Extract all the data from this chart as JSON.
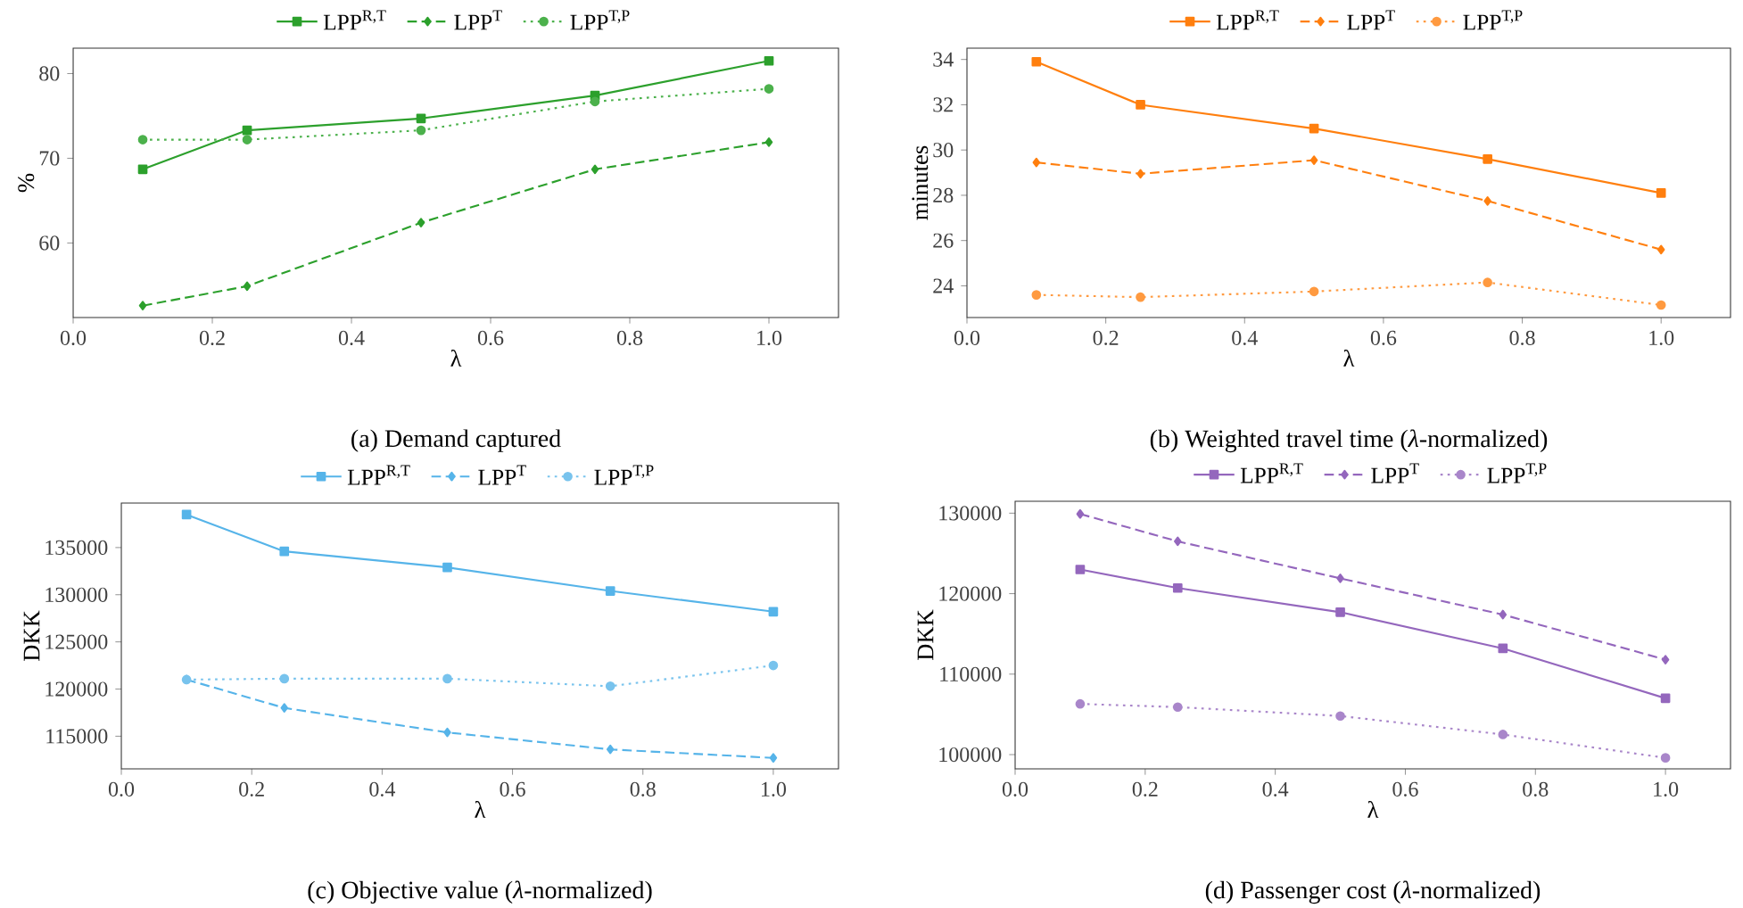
{
  "chart_data": [
    {
      "type": "line",
      "title": "(a) Demand captured",
      "xlabel": "λ",
      "ylabel": "%",
      "x": [
        0.1,
        0.25,
        0.5,
        0.75,
        1.0
      ],
      "xlim": [
        0,
        1.1
      ],
      "ylim": [
        51.2,
        83
      ],
      "xticks": [
        {
          "value": 0,
          "label": "0.0"
        },
        {
          "value": 0.2,
          "label": "0.2"
        },
        {
          "value": 0.4,
          "label": "0.4"
        },
        {
          "value": 0.6,
          "label": "0.6"
        },
        {
          "value": 0.8,
          "label": "0.8"
        },
        {
          "value": 1.0,
          "label": "1.0"
        }
      ],
      "yticks": [
        60,
        70,
        80
      ],
      "legend": "top",
      "grid": false,
      "series": [
        {
          "name": "LPP$^{R,T}$",
          "color": "#2ca02c",
          "marker": "square",
          "line_style": "solid",
          "values": [
            68.7,
            73.3,
            74.7,
            77.4,
            81.5
          ]
        },
        {
          "name": "LPP$^{T}$",
          "color": "#2ca02c",
          "marker": "diamond",
          "line_style": "dashed",
          "values": [
            52.6,
            54.9,
            62.4,
            68.7,
            71.9
          ]
        },
        {
          "name": "LPP$^{T,P}$",
          "color": "#4cb14c",
          "marker": "circle",
          "line_style": "dotted",
          "values": [
            72.2,
            72.2,
            73.3,
            76.7,
            78.2
          ]
        }
      ]
    },
    {
      "type": "line",
      "title": "(b) Weighted travel time (*λ*-normalized)",
      "xlabel": "λ",
      "ylabel": "minutes",
      "x": [
        0.1,
        0.25,
        0.5,
        0.75,
        1.0
      ],
      "xlim": [
        0,
        1.1
      ],
      "ylim": [
        22.6,
        34.5
      ],
      "xticks": [
        {
          "value": 0,
          "label": "0.0"
        },
        {
          "value": 0.2,
          "label": "0.2"
        },
        {
          "value": 0.4,
          "label": "0.4"
        },
        {
          "value": 0.6,
          "label": "0.6"
        },
        {
          "value": 0.8,
          "label": "0.8"
        },
        {
          "value": 1.0,
          "label": "1.0"
        }
      ],
      "yticks": [
        24,
        26,
        28,
        30,
        32,
        34
      ],
      "legend": "top",
      "grid": false,
      "series": [
        {
          "name": "LPP$^{R,T}$",
          "color": "#ff7f0e",
          "marker": "square",
          "line_style": "solid",
          "values": [
            33.9,
            32.0,
            30.95,
            29.6,
            28.1
          ]
        },
        {
          "name": "LPP$^{T}$",
          "color": "#ff7f0e",
          "marker": "diamond",
          "line_style": "dashed",
          "values": [
            29.45,
            28.95,
            29.55,
            27.75,
            25.6
          ]
        },
        {
          "name": "LPP$^{T,P}$",
          "color": "#ff9a40",
          "marker": "circle",
          "line_style": "dotted",
          "values": [
            23.6,
            23.5,
            23.75,
            24.15,
            23.15
          ]
        }
      ]
    },
    {
      "type": "line",
      "title": "(c) Objective value (*λ*-normalized)",
      "xlabel": "λ",
      "ylabel": "DKK",
      "x": [
        0.1,
        0.25,
        0.5,
        0.75,
        1.0
      ],
      "xlim": [
        0,
        1.1
      ],
      "ylim": [
        111540,
        139720
      ],
      "xticks": [
        {
          "value": 0,
          "label": "0.0"
        },
        {
          "value": 0.2,
          "label": "0.2"
        },
        {
          "value": 0.4,
          "label": "0.4"
        },
        {
          "value": 0.6,
          "label": "0.6"
        },
        {
          "value": 0.8,
          "label": "0.8"
        },
        {
          "value": 1.0,
          "label": "1.0"
        }
      ],
      "yticks": [
        115000,
        120000,
        125000,
        130000,
        135000
      ],
      "legend": "top",
      "grid": false,
      "series": [
        {
          "name": "LPP$^{R,T}$",
          "color": "#56b4e9",
          "marker": "square",
          "line_style": "solid",
          "values": [
            138500,
            134600,
            132900,
            130400,
            128200
          ]
        },
        {
          "name": "LPP$^{T}$",
          "color": "#56b4e9",
          "marker": "diamond",
          "line_style": "dashed",
          "values": [
            121000,
            118000,
            115400,
            113600,
            112700
          ]
        },
        {
          "name": "LPP$^{T,P}$",
          "color": "#78c3ed",
          "marker": "circle",
          "line_style": "dotted",
          "values": [
            121000,
            121100,
            121100,
            120300,
            122500
          ]
        }
      ]
    },
    {
      "type": "line",
      "title": "(d) Passenger cost (*λ*-normalized)",
      "xlabel": "λ",
      "ylabel": "DKK",
      "x": [
        0.1,
        0.25,
        0.5,
        0.75,
        1.0
      ],
      "xlim": [
        0,
        1.1
      ],
      "ylim": [
        98230,
        131480
      ],
      "xticks": [
        {
          "value": 0,
          "label": "0.0"
        },
        {
          "value": 0.2,
          "label": "0.2"
        },
        {
          "value": 0.4,
          "label": "0.4"
        },
        {
          "value": 0.6,
          "label": "0.6"
        },
        {
          "value": 0.8,
          "label": "0.8"
        },
        {
          "value": 1.0,
          "label": "1.0"
        }
      ],
      "yticks": [
        100000,
        110000,
        120000,
        130000
      ],
      "legend": "top",
      "grid": false,
      "series": [
        {
          "name": "LPP$^{R,T}$",
          "color": "#9467bd",
          "marker": "square",
          "line_style": "solid",
          "values": [
            123000,
            120700,
            117700,
            113200,
            107000
          ]
        },
        {
          "name": "LPP$^{T}$",
          "color": "#9467bd",
          "marker": "diamond",
          "line_style": "dashed",
          "values": [
            129900,
            126500,
            121900,
            117400,
            111800
          ]
        },
        {
          "name": "LPP$^{T,P}$",
          "color": "#a986ca",
          "marker": "circle",
          "line_style": "dotted",
          "values": [
            106300,
            105900,
            104800,
            102500,
            99600
          ]
        }
      ]
    }
  ]
}
